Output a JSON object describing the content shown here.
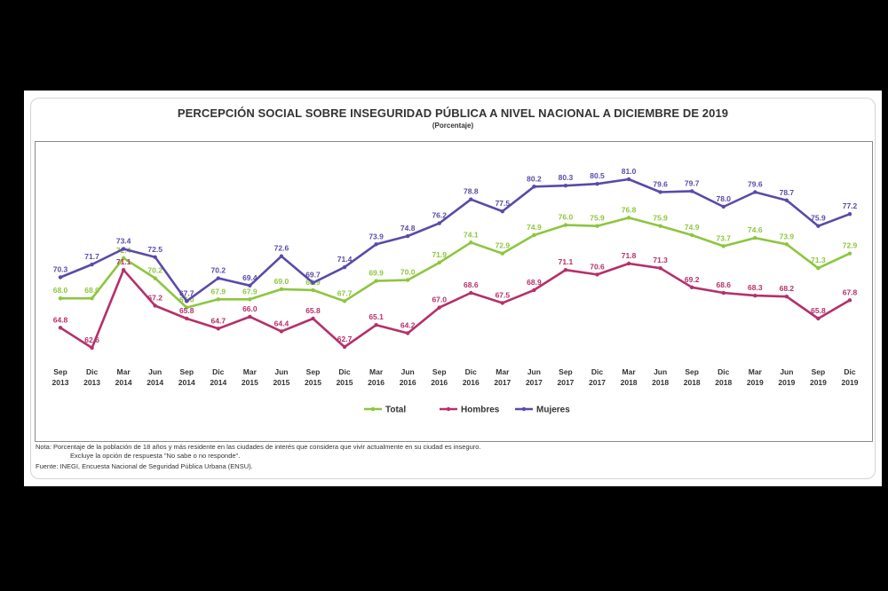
{
  "title": "PERCEPCIÓN SOCIAL SOBRE INSEGURIDAD PÚBLICA A NIVEL NACIONAL A DICIEMBRE DE 2019",
  "subtitle": "(Porcentaje)",
  "notes": {
    "line1": "Nota: Porcentaje de la población de 18 años y más residente en las ciudades de interés que considera que vivir actualmente en su ciudad es inseguro.",
    "line2": "Excluye la opción de respuesta \"No sabe o no responde\".",
    "line3": "Fuente: INEGI, Encuesta Nacional de Seguridad Pública Urbana (ENSU)."
  },
  "colors": {
    "total": "#8dc63f",
    "hombres": "#b5306a",
    "mujeres": "#5b4aa8"
  },
  "chart_data": {
    "type": "line",
    "title": "PERCEPCIÓN SOCIAL SOBRE INSEGURIDAD PÚBLICA A NIVEL NACIONAL A DICIEMBRE DE 2019",
    "subtitle": "(Porcentaje)",
    "categories": [
      [
        "Sep",
        "2013"
      ],
      [
        "Dic",
        "2013"
      ],
      [
        "Mar",
        "2014"
      ],
      [
        "Jun",
        "2014"
      ],
      [
        "Sep",
        "2014"
      ],
      [
        "Dic",
        "2014"
      ],
      [
        "Mar",
        "2015"
      ],
      [
        "Jun",
        "2015"
      ],
      [
        "Sep",
        "2015"
      ],
      [
        "Dic",
        "2015"
      ],
      [
        "Mar",
        "2016"
      ],
      [
        "Jun",
        "2016"
      ],
      [
        "Sep",
        "2016"
      ],
      [
        "Dic",
        "2016"
      ],
      [
        "Mar",
        "2017"
      ],
      [
        "Jun",
        "2017"
      ],
      [
        "Sep",
        "2017"
      ],
      [
        "Dic",
        "2017"
      ],
      [
        "Mar",
        "2018"
      ],
      [
        "Jun",
        "2018"
      ],
      [
        "Sep",
        "2018"
      ],
      [
        "Dic",
        "2018"
      ],
      [
        "Mar",
        "2019"
      ],
      [
        "Jun",
        "2019"
      ],
      [
        "Sep",
        "2019"
      ],
      [
        "Dic",
        "2019"
      ]
    ],
    "series": [
      {
        "name": "Total",
        "key": "total",
        "values": [
          68.0,
          68.0,
          72.4,
          70.2,
          67.0,
          67.9,
          67.9,
          69.0,
          68.9,
          67.7,
          69.9,
          70.0,
          71.9,
          74.1,
          72.9,
          74.9,
          76.0,
          75.9,
          76.8,
          75.9,
          74.9,
          73.7,
          74.6,
          73.9,
          71.3,
          72.9
        ],
        "labels": [
          "68.0",
          "68.0",
          "72.4",
          "70.2",
          "67.0",
          "67.9",
          "67.9",
          "69.0",
          "68.9",
          "67.7",
          "69.9",
          "70.0",
          "71.9",
          "74.1",
          "72.9",
          "74.9",
          "76.0",
          "75.9",
          "76.8",
          "75.9",
          "74.9",
          "73.7",
          "74.6",
          "73.9",
          "71.3",
          "72.9"
        ]
      },
      {
        "name": "Hombres",
        "key": "hombres",
        "values": [
          64.8,
          62.6,
          71.1,
          67.2,
          65.8,
          64.7,
          66.0,
          64.4,
          65.8,
          62.7,
          65.1,
          64.2,
          67.0,
          68.6,
          67.5,
          68.9,
          71.1,
          70.6,
          71.8,
          71.3,
          69.2,
          68.6,
          68.3,
          68.2,
          65.8,
          67.8
        ],
        "labels": [
          "64.8",
          "62.6",
          "71.1",
          "67.2",
          "65.8",
          "64.7",
          "66.0",
          "64.4",
          "65.8",
          "62.7",
          "65.1",
          "64.2",
          "67.0",
          "68.6",
          "67.5",
          "68.9",
          "71.1",
          "70.6",
          "71.8",
          "71.3",
          "69.2",
          "68.6",
          "68.3",
          "68.2",
          "65.8",
          "67.8"
        ]
      },
      {
        "name": "Mujeres",
        "key": "mujeres",
        "values": [
          70.3,
          71.7,
          73.4,
          72.5,
          67.7,
          70.2,
          69.4,
          72.6,
          69.7,
          71.4,
          73.9,
          74.8,
          76.2,
          78.8,
          77.5,
          80.2,
          80.3,
          80.5,
          81.0,
          79.6,
          79.7,
          78.0,
          79.6,
          78.7,
          75.9,
          77.2
        ],
        "labels": [
          "70.3",
          "71.7",
          "73.4",
          "72.5",
          "67.7",
          "70.2",
          "69.4",
          "72.6",
          "69.7",
          "71.4",
          "73.9",
          "74.8",
          "76.2",
          "78.8",
          "77.5",
          "80.2",
          "80.3",
          "80.5",
          "81.0",
          "79.6",
          "79.7",
          "78.0",
          "79.6",
          "78.7",
          "75.9",
          "77.2"
        ]
      }
    ],
    "legend": [
      "Total",
      "Hombres",
      "Mujeres"
    ],
    "legend_position": "bottom-center",
    "xlabel": "",
    "ylabel": "",
    "ylim": [
      60,
      83
    ],
    "grid": false
  }
}
